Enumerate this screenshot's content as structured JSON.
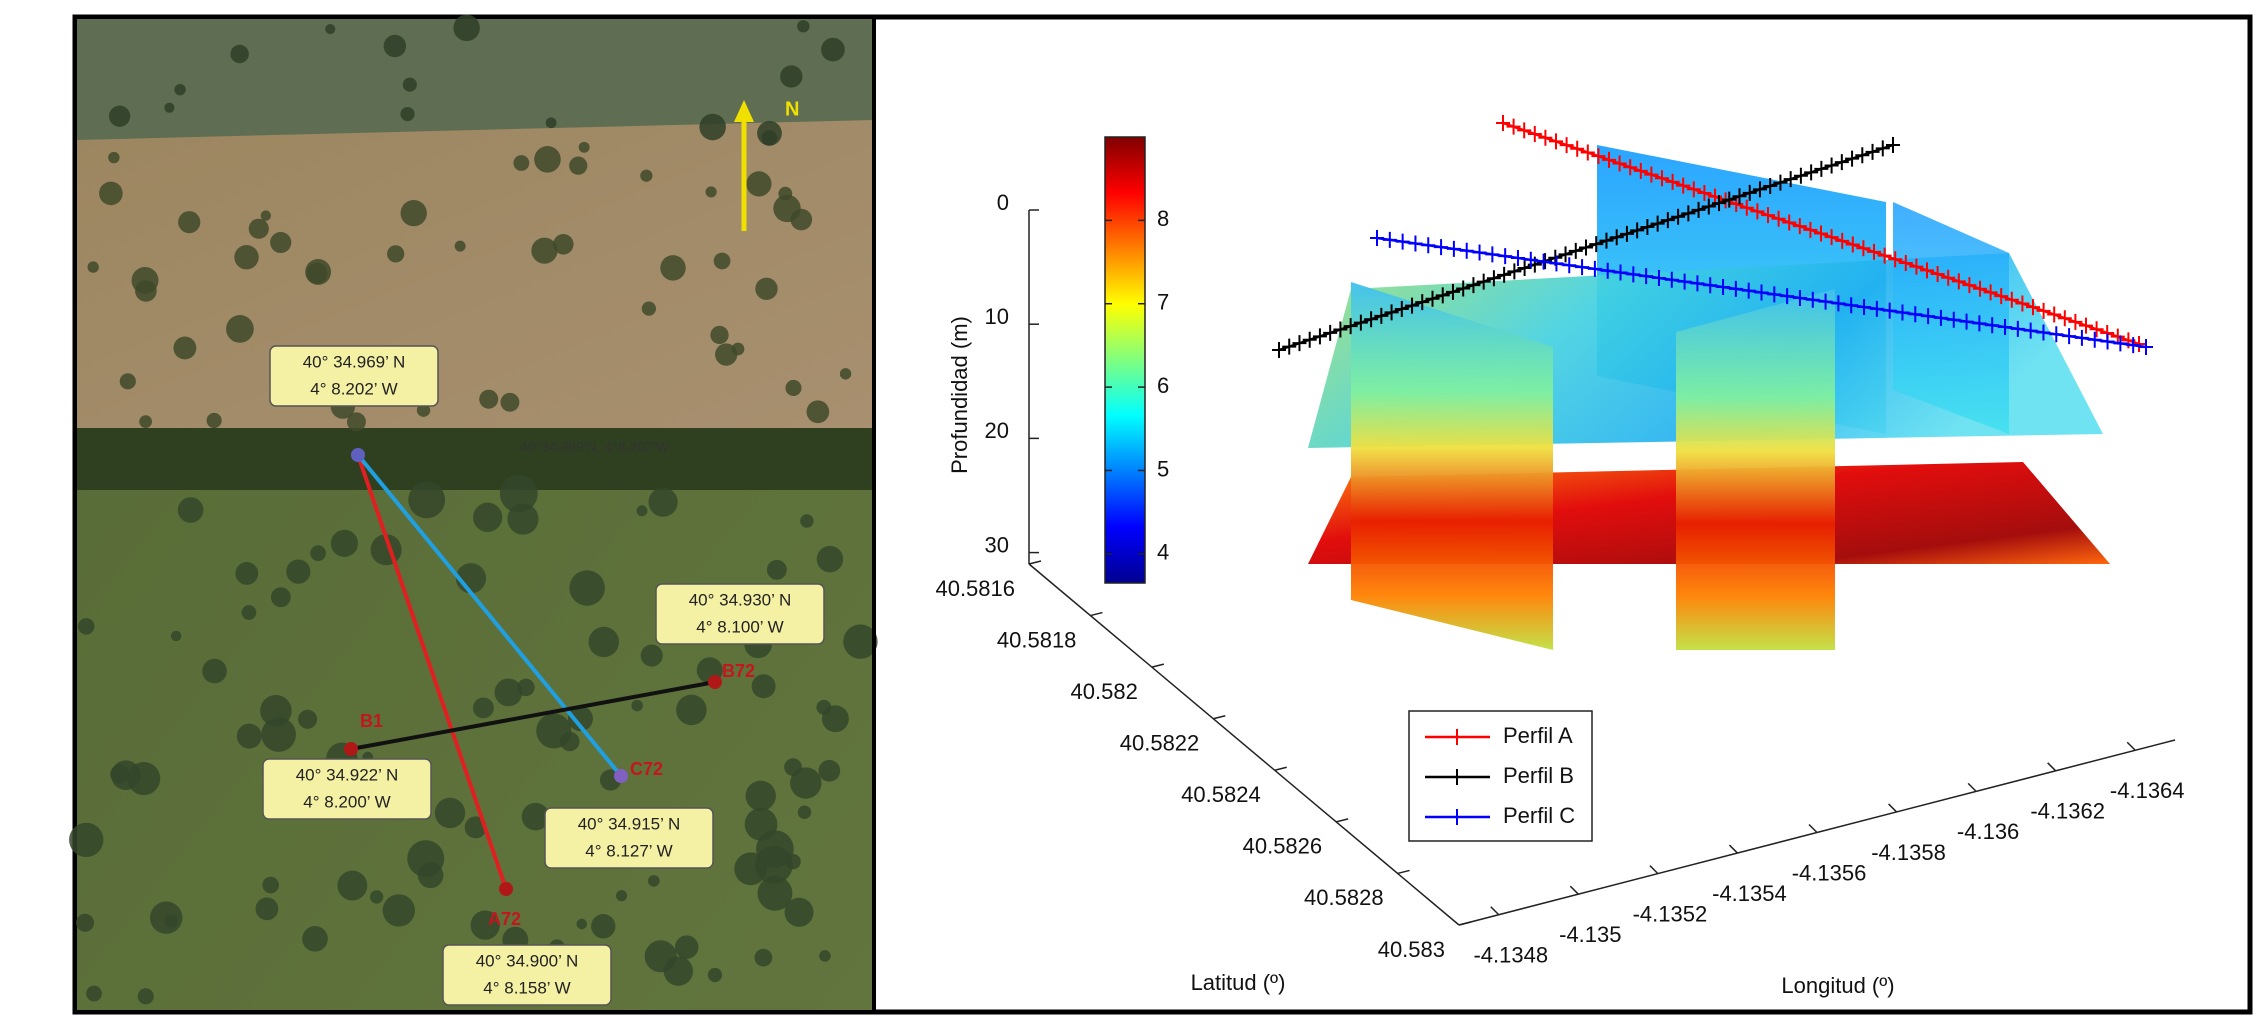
{
  "map": {
    "north_label": "N",
    "points": [
      {
        "label": "B1"
      },
      {
        "label": "B72"
      },
      {
        "label": "C72"
      },
      {
        "label": "A72"
      }
    ],
    "coordinates": [
      {
        "lat": "40° 34.969’ N",
        "lon": "4° 8.202’ W"
      },
      {
        "lat": "40° 34.930’ N",
        "lon": "4° 8.100’ W"
      },
      {
        "lat": "40° 34.922’ N",
        "lon": "4° 8.200’ W"
      },
      {
        "lat": "40° 34.915’ N",
        "lon": "4° 8.127’ W"
      },
      {
        "lat": "40° 34.900’ N",
        "lon": "4° 8.158’ W"
      }
    ],
    "overlay_text": "40°34.969'N, 4°8.202'W"
  },
  "chart_data": {
    "type": "slice3d",
    "zlabel": "Profundidad (m)",
    "zlim": [
      0,
      31
    ],
    "zticks": [
      0,
      10,
      20,
      30
    ],
    "xlabel": "Latitud (º)",
    "xlim": [
      40.5816,
      40.583
    ],
    "xticks": [
      40.5816,
      40.5818,
      40.582,
      40.5822,
      40.5824,
      40.5826,
      40.5828,
      40.583
    ],
    "ylabel": "Longitud (º)",
    "ylim": [
      -4.1347,
      -4.1365
    ],
    "yticks": [
      -4.1348,
      -4.135,
      -4.1352,
      -4.1354,
      -4.1356,
      -4.1358,
      -4.136,
      -4.1362,
      -4.1364
    ],
    "colorbar": {
      "lim": [
        3.65,
        9.0
      ],
      "ticks": [
        4,
        5,
        6,
        7,
        8
      ]
    },
    "series": [
      {
        "name": "Perfil A",
        "color": "#ff0000"
      },
      {
        "name": "Perfil B",
        "color": "#000000"
      },
      {
        "name": "Perfil C",
        "color": "#0000ff"
      }
    ]
  }
}
